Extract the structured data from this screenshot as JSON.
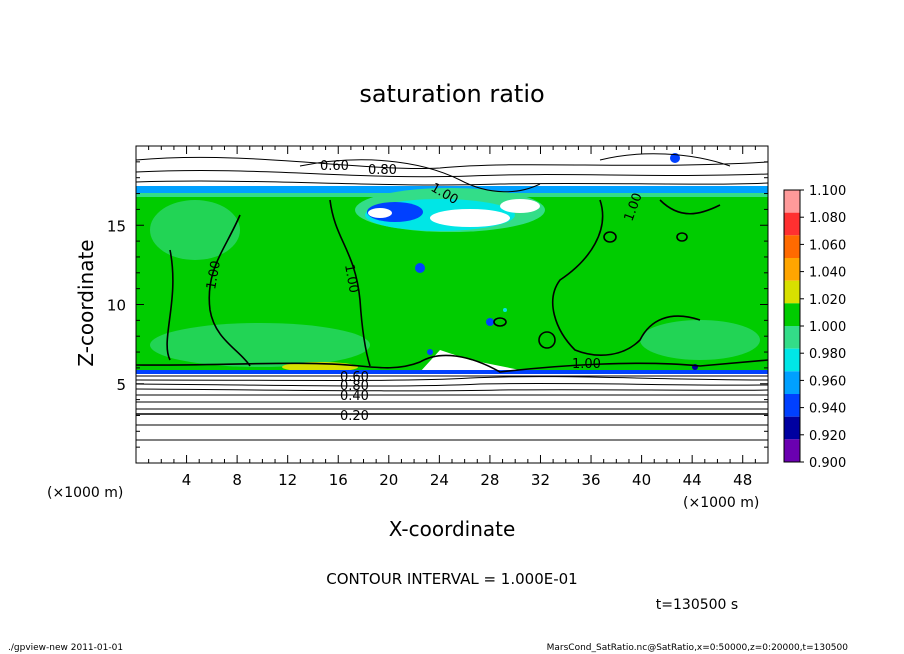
{
  "chart_data": {
    "type": "heatmap",
    "title": "saturation ratio",
    "xlabel": "X-coordinate",
    "ylabel": "Z-coordinate",
    "x_unit": "(×1000 m)",
    "y_unit": "(×1000 m)",
    "xlim": [
      0,
      50
    ],
    "ylim": [
      0,
      20
    ],
    "x_ticks": [
      4,
      8,
      12,
      16,
      20,
      24,
      28,
      32,
      36,
      40,
      44,
      48
    ],
    "y_ticks": [
      5,
      10,
      15
    ],
    "colorbar": {
      "levels": [
        "1.100",
        "1.080",
        "1.060",
        "1.040",
        "1.020",
        "1.000",
        "0.980",
        "0.960",
        "0.940",
        "0.920",
        "0.900"
      ],
      "colors": [
        "#ff9a9a",
        "#ff3030",
        "#ff6a00",
        "#ffa500",
        "#d8e000",
        "#00cc00",
        "#33dd88",
        "#00e6e6",
        "#00a0ff",
        "#0040ff",
        "#0000a0",
        "#6a00b0"
      ]
    },
    "contour_labels": [
      "0.60",
      "0.80",
      "1.00",
      "1.00",
      "1.00",
      "1.00",
      "1.00",
      "0.60",
      "0.80",
      "0.40",
      "0.20"
    ],
    "contour_interval": "CONTOUR INTERVAL = 1.000E-01",
    "time_label": "t=130500 s"
  },
  "footer": {
    "left": "./gpview-new  2011-01-01",
    "right": "MarsCond_SatRatio.nc@SatRatio,x=0:50000,z=0:20000,t=130500"
  }
}
